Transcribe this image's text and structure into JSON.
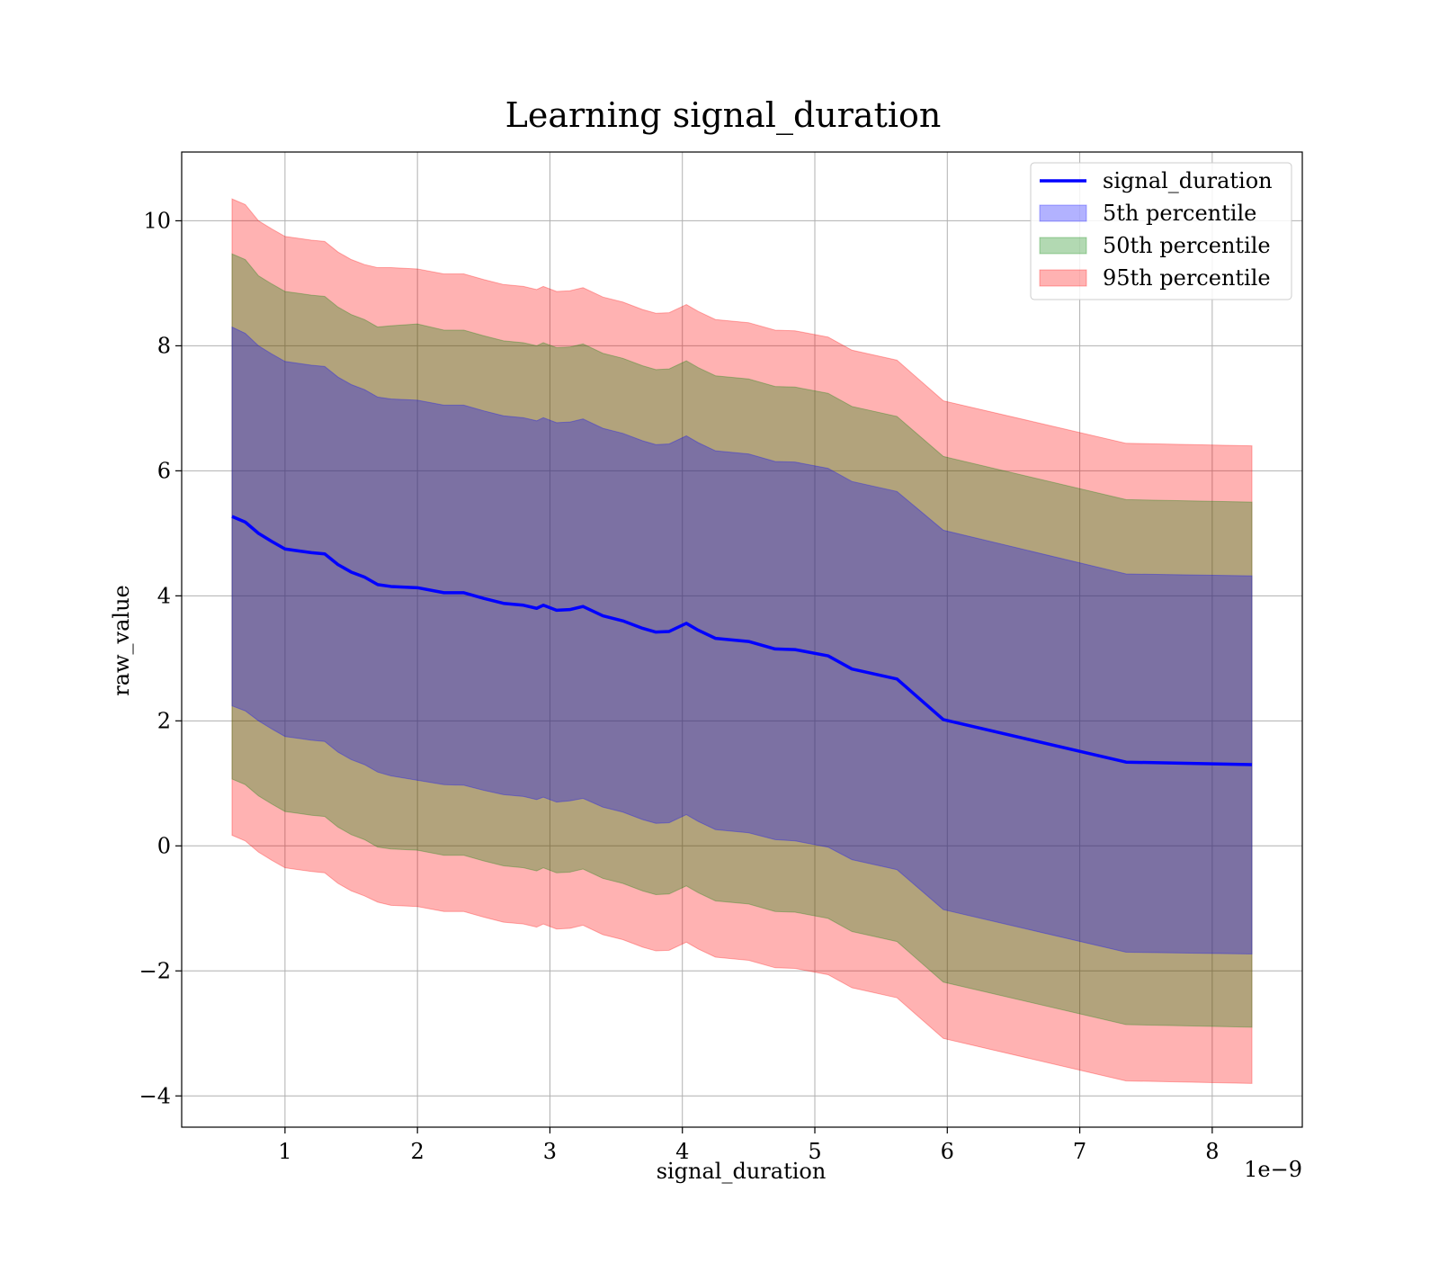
{
  "chart_data": {
    "type": "line",
    "title": "Learning signal_duration",
    "xlabel": "signal_duration",
    "ylabel": "raw_value",
    "x_offset_label": "1e−9",
    "xlim": [
      2.2e-10,
      8.68e-09
    ],
    "ylim": [
      -4.5,
      11.1
    ],
    "x_ticks": [
      1e-09,
      2e-09,
      3e-09,
      4e-09,
      5e-09,
      6e-09,
      7e-09,
      8e-09
    ],
    "x_tick_labels": [
      "1",
      "2",
      "3",
      "4",
      "5",
      "6",
      "7",
      "8"
    ],
    "y_ticks": [
      -4,
      -2,
      0,
      2,
      4,
      6,
      8,
      10
    ],
    "y_tick_labels": [
      "−4",
      "−2",
      "0",
      "2",
      "4",
      "6",
      "8",
      "10"
    ],
    "grid": true,
    "legend_position": "top-right",
    "legend": [
      {
        "label": "signal_duration",
        "kind": "line",
        "color": "#0000ff"
      },
      {
        "label": "5th percentile",
        "kind": "patch",
        "color": "#0000ff"
      },
      {
        "label": "50th percentile",
        "kind": "patch",
        "color": "#008000"
      },
      {
        "label": "95th percentile",
        "kind": "patch",
        "color": "#ff0000"
      }
    ],
    "colors": {
      "line": "#0000ff",
      "band_5": "#0000ff",
      "band_50": "#008000",
      "band_95": "#ff0000"
    },
    "x": [
      6e-10,
      7e-10,
      8e-10,
      9e-10,
      1e-09,
      1.1e-09,
      1.2e-09,
      1.3e-09,
      1.4e-09,
      1.5e-09,
      1.6e-09,
      1.7e-09,
      1.8e-09,
      2e-09,
      2.2e-09,
      2.35e-09,
      2.5e-09,
      2.65e-09,
      2.8e-09,
      2.9e-09,
      2.95e-09,
      3.05e-09,
      3.15e-09,
      3.25e-09,
      3.4e-09,
      3.55e-09,
      3.7e-09,
      3.8e-09,
      3.9e-09,
      4.03e-09,
      4.12e-09,
      4.25e-09,
      4.5e-09,
      4.7e-09,
      4.85e-09,
      5.1e-09,
      5.28e-09,
      5.62e-09,
      5.97e-09,
      7.35e-09,
      8.3e-09
    ],
    "series": [
      {
        "name": "signal_duration",
        "values": [
          5.27,
          5.18,
          5.0,
          4.87,
          4.75,
          4.72,
          4.69,
          4.67,
          4.5,
          4.38,
          4.3,
          4.18,
          4.15,
          4.13,
          4.05,
          4.05,
          3.96,
          3.88,
          3.85,
          3.8,
          3.85,
          3.77,
          3.78,
          3.83,
          3.68,
          3.6,
          3.48,
          3.42,
          3.43,
          3.56,
          3.45,
          3.32,
          3.27,
          3.15,
          3.14,
          3.04,
          2.83,
          2.67,
          2.02,
          1.34,
          1.3
        ]
      }
    ],
    "bands": [
      {
        "name": "95th percentile",
        "upper": [
          10.35,
          10.26,
          10.0,
          9.87,
          9.75,
          9.72,
          9.69,
          9.67,
          9.5,
          9.38,
          9.3,
          9.25,
          9.25,
          9.23,
          9.15,
          9.15,
          9.06,
          8.98,
          8.95,
          8.9,
          8.95,
          8.87,
          8.88,
          8.93,
          8.78,
          8.7,
          8.58,
          8.52,
          8.53,
          8.66,
          8.55,
          8.42,
          8.37,
          8.25,
          8.24,
          8.14,
          7.93,
          7.77,
          7.12,
          6.44,
          6.4
        ],
        "lower": [
          0.17,
          0.08,
          -0.1,
          -0.23,
          -0.35,
          -0.38,
          -0.41,
          -0.43,
          -0.6,
          -0.72,
          -0.8,
          -0.9,
          -0.95,
          -0.97,
          -1.05,
          -1.05,
          -1.14,
          -1.22,
          -1.25,
          -1.3,
          -1.25,
          -1.33,
          -1.32,
          -1.27,
          -1.42,
          -1.5,
          -1.62,
          -1.68,
          -1.67,
          -1.54,
          -1.65,
          -1.78,
          -1.83,
          -1.95,
          -1.96,
          -2.06,
          -2.27,
          -2.43,
          -3.08,
          -3.76,
          -3.8
        ]
      },
      {
        "name": "50th percentile",
        "upper": [
          9.47,
          9.38,
          9.12,
          8.99,
          8.87,
          8.84,
          8.81,
          8.79,
          8.62,
          8.5,
          8.42,
          8.3,
          8.32,
          8.35,
          8.25,
          8.25,
          8.16,
          8.08,
          8.05,
          8.0,
          8.05,
          7.97,
          7.98,
          8.03,
          7.88,
          7.8,
          7.68,
          7.62,
          7.63,
          7.76,
          7.65,
          7.52,
          7.47,
          7.35,
          7.34,
          7.24,
          7.03,
          6.87,
          6.23,
          5.54,
          5.5
        ],
        "lower": [
          1.07,
          0.98,
          0.8,
          0.67,
          0.55,
          0.52,
          0.49,
          0.47,
          0.3,
          0.18,
          0.1,
          -0.02,
          -0.05,
          -0.07,
          -0.15,
          -0.15,
          -0.24,
          -0.32,
          -0.35,
          -0.4,
          -0.35,
          -0.43,
          -0.42,
          -0.37,
          -0.52,
          -0.6,
          -0.72,
          -0.78,
          -0.77,
          -0.64,
          -0.75,
          -0.88,
          -0.93,
          -1.05,
          -1.06,
          -1.16,
          -1.37,
          -1.53,
          -2.18,
          -2.86,
          -2.9
        ]
      },
      {
        "name": "5th percentile",
        "upper": [
          8.3,
          8.2,
          8.0,
          7.87,
          7.75,
          7.72,
          7.69,
          7.67,
          7.5,
          7.38,
          7.3,
          7.18,
          7.15,
          7.13,
          7.05,
          7.05,
          6.96,
          6.88,
          6.85,
          6.8,
          6.85,
          6.77,
          6.78,
          6.83,
          6.68,
          6.6,
          6.48,
          6.42,
          6.43,
          6.56,
          6.45,
          6.32,
          6.27,
          6.15,
          6.14,
          6.04,
          5.83,
          5.67,
          5.05,
          4.35,
          4.32
        ],
        "lower": [
          2.24,
          2.16,
          2.0,
          1.87,
          1.75,
          1.72,
          1.69,
          1.67,
          1.5,
          1.38,
          1.3,
          1.18,
          1.12,
          1.05,
          0.98,
          0.97,
          0.89,
          0.82,
          0.79,
          0.74,
          0.78,
          0.7,
          0.72,
          0.76,
          0.62,
          0.54,
          0.42,
          0.36,
          0.37,
          0.5,
          0.39,
          0.26,
          0.21,
          0.1,
          0.08,
          -0.02,
          -0.22,
          -0.38,
          -1.02,
          -1.7,
          -1.73
        ]
      }
    ]
  }
}
